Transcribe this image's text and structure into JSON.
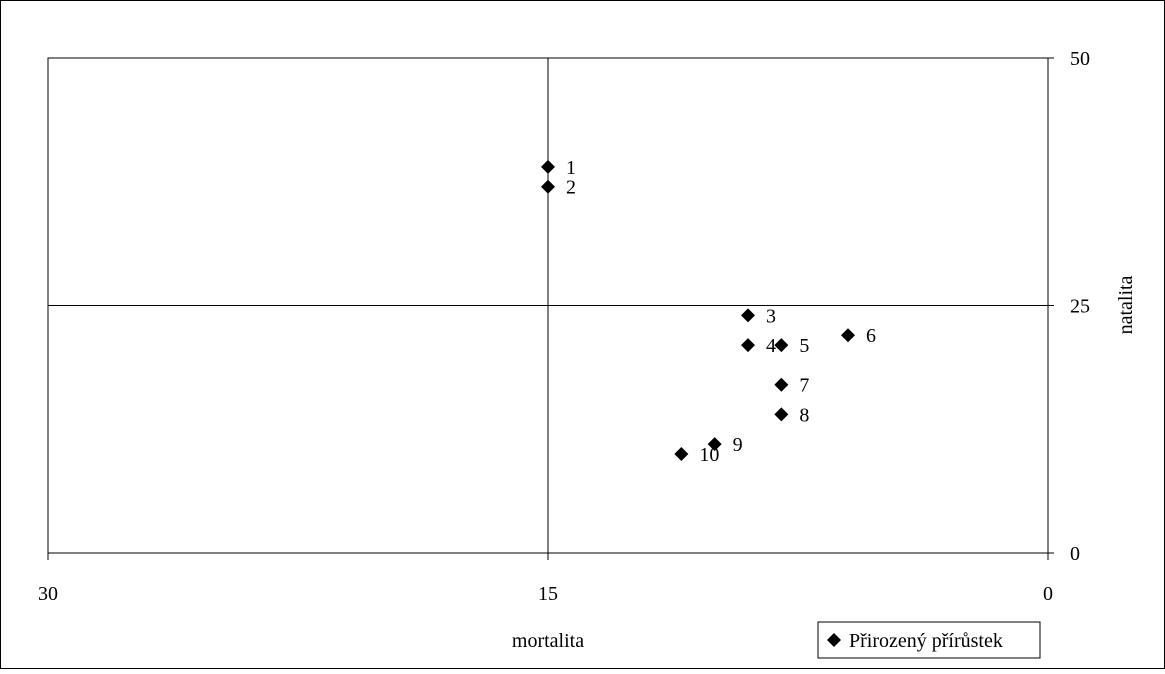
{
  "chart_data": {
    "type": "scatter",
    "title": "",
    "xlabel": "mortalita",
    "ylabel": "natalita",
    "x_reversed": true,
    "xlim": [
      0,
      30
    ],
    "ylim": [
      0,
      50
    ],
    "x_ticks": [
      30,
      15,
      0
    ],
    "y_ticks": [
      0,
      25,
      50
    ],
    "reference_lines": {
      "x": 15,
      "y": 25
    },
    "grid": false,
    "legend": {
      "position": "bottom-right",
      "entries": [
        "Přirozený přírůstek"
      ]
    },
    "series": [
      {
        "name": "Přirozený přírůstek",
        "marker": "diamond",
        "color": "#000000",
        "points": [
          {
            "label": "1",
            "x": 15.0,
            "y": 39.0
          },
          {
            "label": "2",
            "x": 15.0,
            "y": 37.0
          },
          {
            "label": "3",
            "x": 9.0,
            "y": 24.0
          },
          {
            "label": "4",
            "x": 9.0,
            "y": 21.0
          },
          {
            "label": "5",
            "x": 8.0,
            "y": 21.0
          },
          {
            "label": "6",
            "x": 6.0,
            "y": 22.0
          },
          {
            "label": "7",
            "x": 8.0,
            "y": 17.0
          },
          {
            "label": "8",
            "x": 8.0,
            "y": 14.0
          },
          {
            "label": "9",
            "x": 10.0,
            "y": 11.0
          },
          {
            "label": "10",
            "x": 11.0,
            "y": 10.0
          }
        ]
      }
    ]
  }
}
